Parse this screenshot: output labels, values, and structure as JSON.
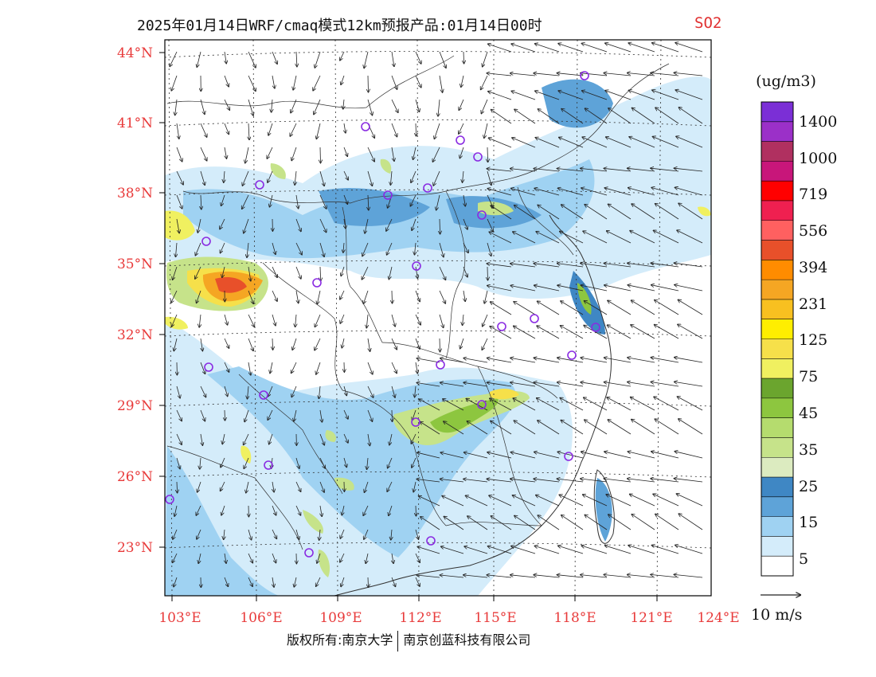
{
  "header": {
    "title": "2025年01月14日WRF/cmaq模式12km预报产品:01月14日00时",
    "pollutant": "SO2"
  },
  "map": {
    "lat_labels": [
      "44°N",
      "41°N",
      "38°N",
      "35°N",
      "32°N",
      "29°N",
      "26°N",
      "23°N"
    ],
    "lon_labels": [
      "103°E",
      "106°E",
      "109°E",
      "112°E",
      "115°E",
      "118°E",
      "121°E",
      "124°E"
    ],
    "lat_range": [
      21.0,
      44.5
    ],
    "lon_range": [
      102.7,
      124.0
    ],
    "station_color": "#8a2be2"
  },
  "legend": {
    "unit": "(ug/m3)",
    "labels": [
      "1400",
      "1000",
      "719",
      "556",
      "394",
      "231",
      "125",
      "75",
      "45",
      "35",
      "25",
      "15",
      "5"
    ],
    "colors": [
      "#7b2fd6",
      "#9b30c8",
      "#b03060",
      "#c8167a",
      "#ff0000",
      "#ef2050",
      "#ff6060",
      "#e8502a",
      "#ff8c00",
      "#f5a623",
      "#f8c020",
      "#ffee00",
      "#f6e04a",
      "#f0f060",
      "#6ba52e",
      "#8dc63f",
      "#b5dc6e",
      "#c6e38a",
      "#dcebc0",
      "#3f87c4",
      "#5ea3d8",
      "#9fd2f2",
      "#d4ecfa",
      "#ffffff"
    ],
    "wind_label": "10 m/s"
  },
  "footer": {
    "left": "版权所有:南京大学",
    "right": "南京创蓝科技有限公司"
  }
}
